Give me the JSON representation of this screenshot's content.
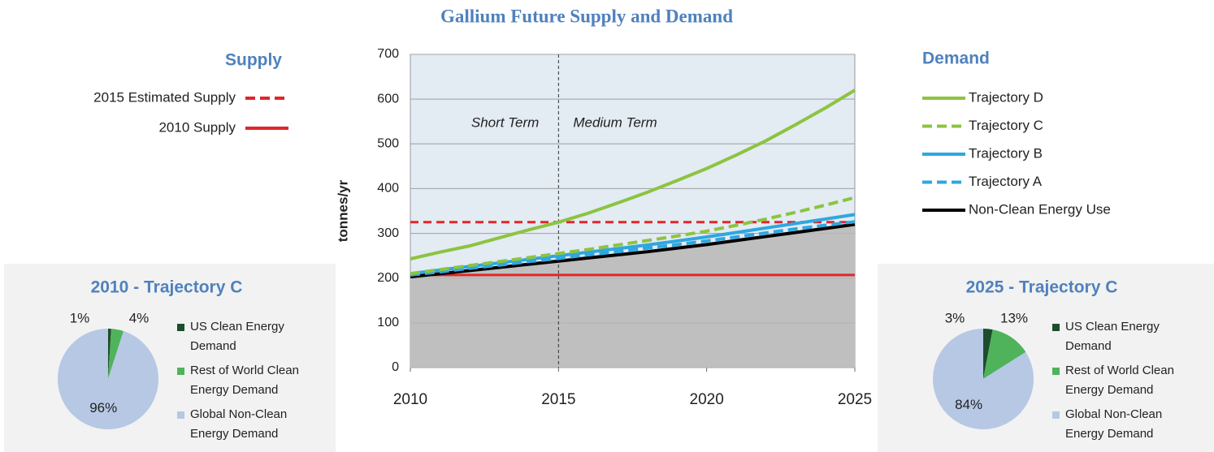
{
  "chart_data": [
    {
      "type": "line",
      "title": "Gallium Future Supply and Demand",
      "ylabel": "tonnes/yr",
      "supply_legend_title": "Supply",
      "demand_legend_title": "Demand",
      "x": [
        2010,
        2011,
        2012,
        2013,
        2014,
        2015,
        2016,
        2017,
        2018,
        2019,
        2020,
        2021,
        2022,
        2023,
        2024,
        2025
      ],
      "xlim": [
        2010,
        2025
      ],
      "xticks": [
        2010,
        2015,
        2020,
        2025
      ],
      "ylim": [
        0,
        700
      ],
      "yticks": [
        0,
        100,
        200,
        300,
        400,
        500,
        600,
        700
      ],
      "grid": true,
      "divider_x": 2015,
      "annotations": [
        {
          "text": "Short Term",
          "side": "left"
        },
        {
          "text": "Medium Term",
          "side": "right"
        }
      ],
      "reference_lines": [
        {
          "name": "2015 Estimated Supply",
          "color": "#e0262b",
          "dash": true,
          "value": 325
        },
        {
          "name": "2010 Supply",
          "color": "#e0262b",
          "dash": false,
          "value": 207
        }
      ],
      "series": [
        {
          "name": "Trajectory D",
          "color": "#8cc43f",
          "dash": false,
          "values": [
            243,
            258,
            272,
            290,
            308,
            325,
            345,
            368,
            392,
            418,
            445,
            475,
            507,
            543,
            580,
            620
          ]
        },
        {
          "name": "Trajectory C",
          "color": "#8cc43f",
          "dash": true,
          "values": [
            210,
            219,
            228,
            237,
            246,
            255,
            264,
            274,
            284,
            294,
            305,
            318,
            332,
            347,
            363,
            380
          ]
        },
        {
          "name": "Trajectory B",
          "color": "#2ea7e0",
          "dash": false,
          "values": [
            210,
            218,
            226,
            234,
            242,
            250,
            258,
            266,
            274,
            283,
            292,
            302,
            312,
            322,
            332,
            342
          ]
        },
        {
          "name": "Trajectory A",
          "color": "#2ea7e0",
          "dash": true,
          "values": [
            207,
            214,
            222,
            229,
            237,
            244,
            252,
            259,
            267,
            275,
            283,
            292,
            301,
            310,
            318,
            326
          ]
        },
        {
          "name": "Non-Clean Energy Use",
          "color": "#000000",
          "dash": false,
          "area": true,
          "values": [
            203,
            210,
            217,
            224,
            231,
            238,
            245,
            252,
            259,
            267,
            275,
            284,
            293,
            302,
            311,
            320
          ]
        }
      ]
    },
    {
      "type": "pie",
      "title": "2010 - Trajectory C",
      "categories": [
        "US Clean Energy Demand",
        "Rest of World Clean Energy Demand",
        "Global Non-Clean Energy Demand"
      ],
      "colors": [
        "#1d4d2b",
        "#4fb35b",
        "#b6c8e4"
      ],
      "values": [
        1,
        4,
        96
      ],
      "value_labels": [
        "1%",
        "4%",
        "96%"
      ]
    },
    {
      "type": "pie",
      "title": "2025 - Trajectory C",
      "categories": [
        "US Clean Energy Demand",
        "Rest of World Clean Energy Demand",
        "Global Non-Clean Energy Demand"
      ],
      "colors": [
        "#1d4d2b",
        "#4fb35b",
        "#b6c8e4"
      ],
      "values": [
        3,
        13,
        84
      ],
      "value_labels": [
        "3%",
        "13%",
        "84%"
      ]
    }
  ]
}
